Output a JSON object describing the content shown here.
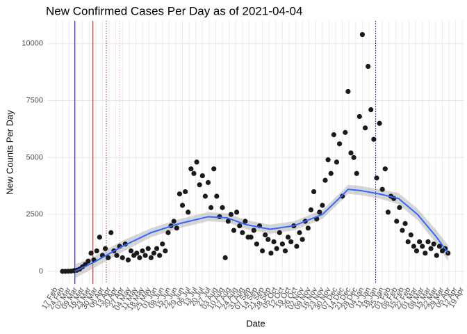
{
  "chart_data": {
    "type": "scatter",
    "title": "New Confirmed Cases Per Day as of 2021-04-04",
    "x_label": "Date",
    "y_label": "New Counts Per Day",
    "color": "#1a1a1a",
    "x": [
      7,
      10,
      13,
      16,
      19,
      22,
      25,
      28,
      31,
      34,
      37,
      40,
      43,
      46,
      49,
      52,
      55,
      58,
      61,
      64,
      67,
      70,
      73,
      76,
      79,
      82,
      85,
      88,
      91,
      94,
      97,
      100,
      103,
      106,
      109,
      112,
      115,
      118,
      121,
      124,
      127,
      130,
      133,
      136,
      139,
      142,
      145,
      148,
      151,
      154,
      157,
      160,
      163,
      166,
      169,
      172,
      175,
      178,
      181,
      184,
      187,
      190,
      193,
      196,
      199,
      202,
      205,
      208,
      211,
      214,
      217,
      220,
      223,
      226,
      229,
      232,
      235,
      238,
      241,
      244,
      247,
      250,
      253,
      256,
      259,
      262,
      265,
      268,
      271,
      274,
      277,
      280,
      283,
      286,
      289,
      292,
      295,
      298,
      301,
      304,
      307,
      310,
      313,
      316,
      319,
      322,
      325,
      328,
      331,
      334,
      337,
      340,
      343,
      346,
      349,
      352,
      355,
      358,
      361,
      364,
      367,
      370,
      373,
      376,
      379,
      382,
      385,
      388,
      391,
      394,
      397,
      400,
      403,
      406,
      409,
      412
    ],
    "values": [
      0,
      0,
      5,
      10,
      30,
      50,
      100,
      200,
      300,
      450,
      800,
      500,
      900,
      1500,
      700,
      1000,
      600,
      1700,
      900,
      700,
      1100,
      600,
      1200,
      500,
      900,
      700,
      800,
      600,
      900,
      700,
      1000,
      600,
      800,
      1000,
      700,
      1200,
      900,
      1700,
      2000,
      2200,
      1900,
      3400,
      2900,
      3500,
      2600,
      4500,
      4300,
      4800,
      3800,
      4200,
      3300,
      3900,
      2800,
      4500,
      3300,
      2400,
      2800,
      600,
      2200,
      2500,
      1800,
      2600,
      2000,
      1700,
      2200,
      1500,
      1500,
      1800,
      1200,
      2000,
      900,
      1600,
      1400,
      800,
      1300,
      1000,
      1700,
      1200,
      900,
      1500,
      1300,
      2000,
      1100,
      1700,
      1400,
      2200,
      1900,
      2700,
      3500,
      2300,
      2600,
      2900,
      4000,
      4900,
      4300,
      6000,
      4800,
      5600,
      3300,
      6100,
      7900,
      5200,
      5000,
      4300,
      6800,
      10400,
      6300,
      9000,
      7100,
      5800,
      4100,
      6500,
      3600,
      4500,
      2600,
      3300,
      3200,
      2200,
      2800,
      1800,
      2100,
      1300,
      1600,
      1100,
      900,
      1300,
      1100,
      800,
      1300,
      1000,
      1200,
      700,
      1100,
      900,
      1000,
      800
    ],
    "smooth": {
      "color": "#3366ff",
      "band_color": "#999999",
      "x": [
        20,
        40,
        70,
        100,
        130,
        160,
        180,
        200,
        225,
        250,
        280,
        300,
        307,
        320,
        340,
        360,
        380,
        400,
        412
      ],
      "values": [
        0,
        400,
        1100,
        1700,
        2100,
        2400,
        2350,
        2050,
        1850,
        2000,
        2500,
        3300,
        3600,
        3550,
        3400,
        3200,
        2500,
        1500,
        800
      ],
      "lower": [
        -300,
        150,
        850,
        1500,
        1900,
        2200,
        2150,
        1850,
        1650,
        1800,
        2300,
        3100,
        3400,
        3350,
        3200,
        2950,
        2250,
        1200,
        450
      ],
      "upper": [
        300,
        650,
        1350,
        1900,
        2300,
        2600,
        2550,
        2250,
        2050,
        2200,
        2700,
        3500,
        3800,
        3750,
        3600,
        3450,
        2750,
        1800,
        1150
      ]
    },
    "vlines": [
      {
        "x": 20,
        "color": "#0000cc",
        "dotted": false
      },
      {
        "x": 39,
        "color": "#cc0000",
        "dotted": false
      },
      {
        "x": 53,
        "color": "#8b3a3a",
        "dotted": true
      },
      {
        "x": 67,
        "color": "#f4a6a6",
        "dotted": true
      },
      {
        "x": 336,
        "color": "#0000cc",
        "dotted": true
      }
    ],
    "xlim": [
      -9,
      429
    ],
    "ylim": [
      -550,
      11000
    ],
    "yticks": [
      0,
      2500,
      5000,
      7500,
      10000
    ],
    "xticks": [
      {
        "value": 0,
        "label": "17 Feb"
      },
      {
        "value": 7,
        "label": "24 Feb"
      },
      {
        "value": 14,
        "label": "02 Mar"
      },
      {
        "value": 21,
        "label": "09 Mar"
      },
      {
        "value": 28,
        "label": "16 Mar"
      },
      {
        "value": 35,
        "label": "23 Mar"
      },
      {
        "value": 42,
        "label": "30 Mar"
      },
      {
        "value": 49,
        "label": "06 Apr"
      },
      {
        "value": 56,
        "label": "13 Apr"
      },
      {
        "value": 63,
        "label": "20 Apr"
      },
      {
        "value": 70,
        "label": "27 Apr"
      },
      {
        "value": 77,
        "label": "04 May"
      },
      {
        "value": 84,
        "label": "11 May"
      },
      {
        "value": 91,
        "label": "18 May"
      },
      {
        "value": 98,
        "label": "25 May"
      },
      {
        "value": 105,
        "label": "01 Jun"
      },
      {
        "value": 112,
        "label": "08 Jun"
      },
      {
        "value": 119,
        "label": "15 Jun"
      },
      {
        "value": 126,
        "label": "22 Jun"
      },
      {
        "value": 133,
        "label": "29 Jun"
      },
      {
        "value": 140,
        "label": "06 Jul"
      },
      {
        "value": 147,
        "label": "13 Jul"
      },
      {
        "value": 154,
        "label": "20 Jul"
      },
      {
        "value": 161,
        "label": "27 Jul"
      },
      {
        "value": 168,
        "label": "03 Aug"
      },
      {
        "value": 175,
        "label": "10 Aug"
      },
      {
        "value": 182,
        "label": "17 Aug"
      },
      {
        "value": 189,
        "label": "24 Aug"
      },
      {
        "value": 196,
        "label": "31 Aug"
      },
      {
        "value": 203,
        "label": "07 Sep"
      },
      {
        "value": 210,
        "label": "14 Sep"
      },
      {
        "value": 217,
        "label": "21 Sep"
      },
      {
        "value": 224,
        "label": "28 Sep"
      },
      {
        "value": 231,
        "label": "05 Oct"
      },
      {
        "value": 238,
        "label": "12 Oct"
      },
      {
        "value": 245,
        "label": "19 Oct"
      },
      {
        "value": 252,
        "label": "26 Oct"
      },
      {
        "value": 259,
        "label": "02 Nov"
      },
      {
        "value": 266,
        "label": "09 Nov"
      },
      {
        "value": 273,
        "label": "16 Nov"
      },
      {
        "value": 280,
        "label": "23 Nov"
      },
      {
        "value": 287,
        "label": "30 Nov"
      },
      {
        "value": 294,
        "label": "07 Dec"
      },
      {
        "value": 301,
        "label": "14 Dec"
      },
      {
        "value": 308,
        "label": "21 Dec"
      },
      {
        "value": 315,
        "label": "28 Dec"
      },
      {
        "value": 322,
        "label": "04 Jan"
      },
      {
        "value": 329,
        "label": "11 Jan"
      },
      {
        "value": 336,
        "label": "18 Jan"
      },
      {
        "value": 343,
        "label": "25 Jan"
      },
      {
        "value": 350,
        "label": "01 Feb"
      },
      {
        "value": 357,
        "label": "08 Feb"
      },
      {
        "value": 364,
        "label": "15 Feb"
      },
      {
        "value": 371,
        "label": "22 Feb"
      },
      {
        "value": 378,
        "label": "01 Mar"
      },
      {
        "value": 385,
        "label": "08 Mar"
      },
      {
        "value": 392,
        "label": "15 Mar"
      },
      {
        "value": 399,
        "label": "22 Mar"
      },
      {
        "value": 406,
        "label": "29 Mar"
      },
      {
        "value": 413,
        "label": "05 Apr"
      },
      {
        "value": 420,
        "label": "12 Apr"
      },
      {
        "value": 427,
        "label": "19 Apr"
      }
    ],
    "grid": true
  }
}
